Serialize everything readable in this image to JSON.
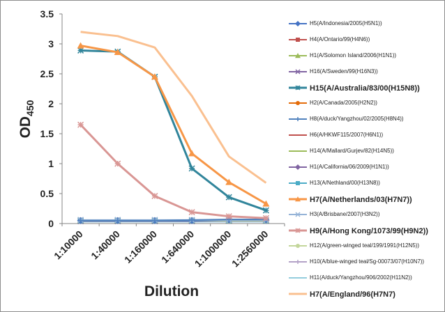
{
  "chart_data": {
    "type": "line",
    "title": "",
    "xlabel": "Dilution",
    "ylabel_main": "OD",
    "ylabel_sub": "450",
    "categories": [
      "1:10000",
      "1:40000",
      "1:160000",
      "1:640000",
      "1:1000000",
      "1:2560000"
    ],
    "ylim": [
      0,
      3.5
    ],
    "yticks": [
      "0",
      "0.5",
      "1",
      "1.5",
      "2",
      "2.5",
      "3",
      "3.5"
    ],
    "grid": false,
    "legend_position": "right",
    "series": [
      {
        "name": "H5(A/Indonesia/2005(H5N1))",
        "color": "#4472c4",
        "marker": "diamond",
        "bold": false,
        "values": [
          0.05,
          0.05,
          0.05,
          0.05,
          0.06,
          0.06
        ]
      },
      {
        "name": "H4(A/Ontario/99(H4N6))",
        "color": "#c0504d",
        "marker": "square",
        "bold": false,
        "values": [
          0.05,
          0.05,
          0.05,
          0.05,
          0.05,
          0.05
        ]
      },
      {
        "name": "H1(A/Solomon Island/2006(H1N1))",
        "color": "#9bbb59",
        "marker": "triangle",
        "bold": false,
        "values": [
          0.05,
          0.05,
          0.05,
          0.05,
          0.05,
          0.05
        ]
      },
      {
        "name": "H16(A/Sweden/99(H16N3))",
        "color": "#8064a2",
        "marker": "x",
        "bold": false,
        "values": [
          0.04,
          0.04,
          0.04,
          0.04,
          0.05,
          0.05
        ]
      },
      {
        "name": "H15(A/Australia/83/00(H15N8))",
        "color": "#31859b",
        "marker": "star",
        "bold": true,
        "values": [
          2.89,
          2.87,
          2.45,
          0.92,
          0.44,
          0.22
        ]
      },
      {
        "name": "H2(A/Canada/2005(H2N2))",
        "color": "#e46c0a",
        "marker": "circle",
        "bold": false,
        "values": [
          0.05,
          0.05,
          0.05,
          0.05,
          0.05,
          0.05
        ]
      },
      {
        "name": "H8(A/duck/Yangzhou/02/2005(H8N4))",
        "color": "#4f81bd",
        "marker": "plus",
        "bold": false,
        "values": [
          0.05,
          0.05,
          0.05,
          0.06,
          0.07,
          0.07
        ]
      },
      {
        "name": "H6(A/HKWF115/2007(H6N1))",
        "color": "#c0504d",
        "marker": "none",
        "bold": false,
        "values": [
          0.05,
          0.05,
          0.05,
          0.05,
          0.05,
          0.05
        ]
      },
      {
        "name": "H14(A/Mallard/Gurjev/82(H14N5))",
        "color": "#9bbb59",
        "marker": "none",
        "bold": false,
        "values": [
          0.04,
          0.04,
          0.04,
          0.04,
          0.04,
          0.04
        ]
      },
      {
        "name": "H1(A/California/06/2009(H1N1))",
        "color": "#8064a2",
        "marker": "diamond",
        "bold": false,
        "values": [
          0.05,
          0.05,
          0.05,
          0.05,
          0.05,
          0.05
        ]
      },
      {
        "name": "H13(A/Nethland/00(H13N8))",
        "color": "#4bacc6",
        "marker": "square",
        "bold": false,
        "values": [
          0.05,
          0.05,
          0.05,
          0.05,
          0.05,
          0.05
        ]
      },
      {
        "name": "H7(A/Netherlands/03(H7N7))",
        "color": "#f79646",
        "marker": "triangle",
        "bold": true,
        "values": [
          2.97,
          2.86,
          2.45,
          1.17,
          0.69,
          0.33
        ]
      },
      {
        "name": "H3(A/Brisbane/2007(H3N2))",
        "color": "#95b3d7",
        "marker": "x",
        "bold": false,
        "values": [
          0.06,
          0.06,
          0.06,
          0.06,
          0.06,
          0.06
        ]
      },
      {
        "name": "H9(A/Hong Kong/1073/99(H9N2))",
        "color": "#d99694",
        "marker": "star",
        "bold": true,
        "values": [
          1.65,
          1.0,
          0.46,
          0.19,
          0.12,
          0.09
        ]
      },
      {
        "name": "H12(A/green-winged teal/199/1991(H12N5))",
        "color": "#c3d69b",
        "marker": "circle",
        "bold": false,
        "values": [
          0.05,
          0.05,
          0.05,
          0.05,
          0.05,
          0.05
        ]
      },
      {
        "name": "H10(A/blue-winged teal/Sg-00073/07(H10N7))",
        "color": "#b3a2c7",
        "marker": "plus",
        "bold": false,
        "values": [
          0.04,
          0.04,
          0.04,
          0.04,
          0.04,
          0.04
        ]
      },
      {
        "name": "H11(A/duck/Yangzhou/906/2002(H11N2))",
        "color": "#93cddd",
        "marker": "none",
        "bold": false,
        "values": [
          0.03,
          0.03,
          0.03,
          0.03,
          0.03,
          0.03
        ]
      },
      {
        "name": "H7(A/England/96(H7N7)",
        "color": "#fac090",
        "marker": "none",
        "bold": true,
        "values": [
          3.2,
          3.13,
          2.94,
          2.13,
          1.12,
          0.68
        ]
      }
    ]
  }
}
